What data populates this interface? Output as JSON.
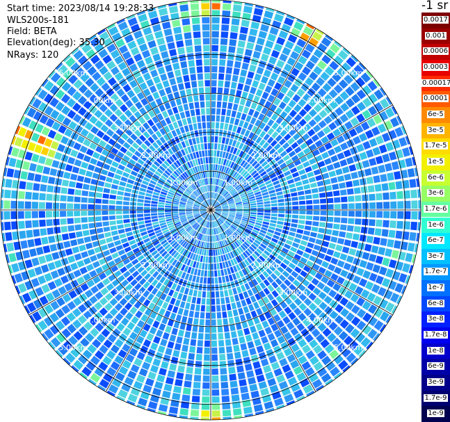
{
  "header": {
    "start_time": "Start time: 2023/08/14 19:28:33",
    "instrument": "WLS200s-181",
    "field": "Field: BETA",
    "elevation": "Elevation(deg): 35.30",
    "nrays": "NRays: 120"
  },
  "colorbar": {
    "title": "-1 sr",
    "labels": [
      "0.0017",
      "0.001",
      "0.0006",
      "0.0003",
      "0.00017",
      "0.0001",
      "6e-5",
      "3e-5",
      "1.7e-5",
      "1e-5",
      "6e-6",
      "3e-6",
      "1.7e-6",
      "1e-6",
      "6e-7",
      "3e-7",
      "1.7e-7",
      "1e-7",
      "6e-8",
      "3e-8",
      "1.7e-8",
      "1e-8",
      "6e-9",
      "3e-9",
      "1.7e-9",
      "1e-9"
    ],
    "colors": [
      "#7d0000",
      "#9a0000",
      "#c10000",
      "#e80000",
      "#ff2a00",
      "#ff5a00",
      "#ff8a00",
      "#ffb400",
      "#ffdc00",
      "#f2f000",
      "#c8ff30",
      "#96ff64",
      "#64ffa0",
      "#30ffd2",
      "#00e8ff",
      "#00c0ff",
      "#0098ff",
      "#0070ff",
      "#0048ff",
      "#0020ff",
      "#0000f0",
      "#0000cc",
      "#0000a8",
      "#00008a",
      "#000070",
      "#000050"
    ]
  },
  "chart_data": {
    "type": "heatmap",
    "projection": "polar PPI",
    "field": "BETA",
    "unit": "-1 sr",
    "elevation_deg": 35.3,
    "nrays": 120,
    "range_rings_km": [
      1.0,
      2.0,
      3.0,
      4.0,
      5.0
    ],
    "ring_labels": [
      "1.00km",
      "2.00km",
      "3.00km",
      "4.00km",
      "5.00km"
    ],
    "max_range_km": 5.4,
    "dominant_value_range": [
      3e-08,
      1e-07
    ],
    "high_value_sectors": [
      {
        "azimuth_deg": 0,
        "range_km": [
          5.0,
          5.4
        ],
        "value_approx": 1e-05
      },
      {
        "azimuth_deg": 30,
        "range_km": [
          5.0,
          5.4
        ],
        "value_approx": 3e-05
      },
      {
        "azimuth_deg": 180,
        "range_km": [
          5.0,
          5.4
        ],
        "value_approx": 3e-05
      },
      {
        "azimuth_deg": 290,
        "range_km": [
          4.4,
          5.4
        ],
        "value_approx": 1e-05
      }
    ]
  }
}
